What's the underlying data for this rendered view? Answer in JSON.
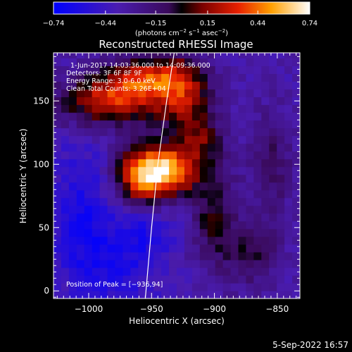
{
  "chart_data": {
    "type": "heatmap",
    "title": "Reconstructed RHESSI Image",
    "xlabel": "Heliocentric X (arcsec)",
    "ylabel": "Heliocentric Y (arcsec)",
    "xlim": [
      -1028,
      -832
    ],
    "ylim": [
      -6,
      188
    ],
    "xticks": [
      -1000,
      -950,
      -900,
      -850
    ],
    "yticks": [
      0,
      50,
      100,
      150
    ],
    "xtick_labels": [
      "−1000",
      "−950",
      "−900",
      "−850"
    ],
    "ytick_labels": [
      "0",
      "50",
      "100",
      "150"
    ],
    "colorbar": {
      "min": -0.74,
      "max": 0.74,
      "tick_values": [
        -0.74,
        -0.44,
        -0.15,
        0.15,
        0.44,
        0.74
      ],
      "tick_labels": [
        "−0.74",
        "−0.44",
        "−0.15",
        "0.15",
        "0.44",
        "0.74"
      ],
      "units_main": "(photons cm",
      "units_sup1": "−2",
      "units_mid": " s",
      "units_sup2": "−1",
      "units_mid2": " asec",
      "units_sup3": "−2",
      "units_end": ")"
    },
    "annotations": [
      "1-Jun-2017 14:03:36.000 to 14:09:36.000",
      "Detectors: 3F 6F 8F 9F ",
      "Energy Range: 3.0-6.0 keV",
      "Clean    Total Counts: 3.26E+04"
    ],
    "peak_label": "Position of Peak = [−936,94]",
    "peak": {
      "x": -936,
      "y": 94
    },
    "limb_curve": [
      [
        -955,
        -6
      ],
      [
        -950,
        50
      ],
      [
        -945,
        100
      ],
      [
        -938,
        150
      ],
      [
        -932,
        188
      ]
    ],
    "image_grid": {
      "x_start": -1028,
      "y_start": -6,
      "cell": 6.125,
      "ncols": 32,
      "nrows": 32
    },
    "sources": [
      {
        "x": -940,
        "y": 95,
        "amp": 0.95,
        "sx": 18,
        "sy": 14
      },
      {
        "x": -962,
        "y": 88,
        "amp": 0.45,
        "sx": 14,
        "sy": 18
      },
      {
        "x": -985,
        "y": 150,
        "amp": 0.6,
        "sx": 28,
        "sy": 14
      },
      {
        "x": -955,
        "y": 168,
        "amp": 0.55,
        "sx": 22,
        "sy": 12
      },
      {
        "x": -925,
        "y": 155,
        "amp": 0.5,
        "sx": 16,
        "sy": 22
      },
      {
        "x": -910,
        "y": 120,
        "amp": 0.3,
        "sx": 12,
        "sy": 14
      },
      {
        "x": -900,
        "y": 60,
        "amp": 0.35,
        "sx": 12,
        "sy": 30
      },
      {
        "x": -870,
        "y": 30,
        "amp": 0.3,
        "sx": 14,
        "sy": 18
      },
      {
        "x": -855,
        "y": 100,
        "amp": 0.25,
        "sx": 12,
        "sy": 30
      },
      {
        "x": -975,
        "y": 20,
        "amp": -0.2,
        "sx": 25,
        "sy": 25
      },
      {
        "x": -1005,
        "y": 60,
        "amp": -0.25,
        "sx": 18,
        "sy": 40
      },
      {
        "x": -955,
        "y": 50,
        "amp": -0.2,
        "sx": 15,
        "sy": 15
      }
    ]
  },
  "footer": {
    "date": "5-Sep-2022 16:57"
  }
}
